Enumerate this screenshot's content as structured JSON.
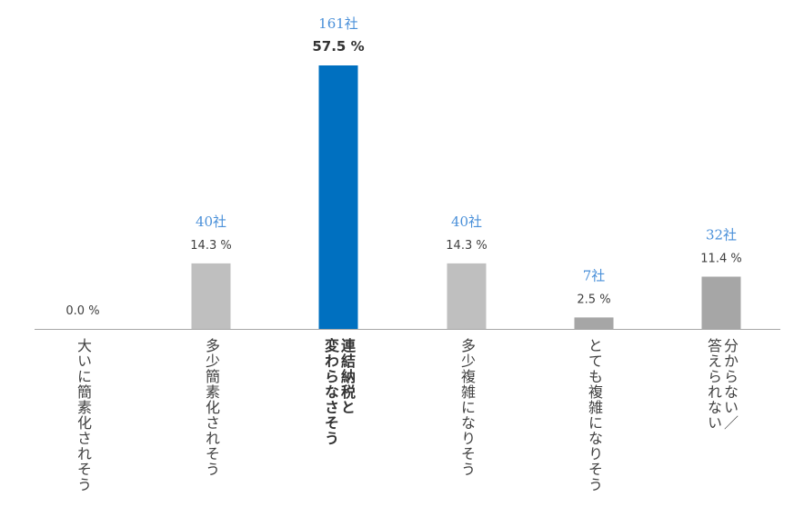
{
  "chart_data": {
    "type": "bar",
    "title": "",
    "xlabel": "",
    "ylabel": "",
    "categories": [
      "大いに簡素化されそう",
      "多少簡素化されそう",
      "連結納税と\n変わらなさそう",
      "多少複雑になりそう",
      "とても複雑になりそう",
      "分からない／\n答えられない"
    ],
    "values": [
      0.0,
      14.3,
      57.5,
      14.3,
      2.5,
      11.4
    ],
    "value_labels": [
      "0.0 %",
      "14.3 %",
      "57.5 %",
      "14.3 %",
      "2.5 %",
      "11.4 %"
    ],
    "count_labels": [
      "",
      "40社",
      "161社",
      "40社",
      "7社",
      "32社"
    ],
    "highlight_index": 2,
    "ylim": [
      0,
      57.5
    ],
    "grid": false,
    "legend": "none",
    "colors": {
      "default_bar": "#bfbfbf",
      "highlight_bar": "#0070c0",
      "dark_bar": "#a6a6a6",
      "count_text": "#4a90d9",
      "percent_text": "#404040",
      "axis": "#a6a6a6"
    }
  }
}
